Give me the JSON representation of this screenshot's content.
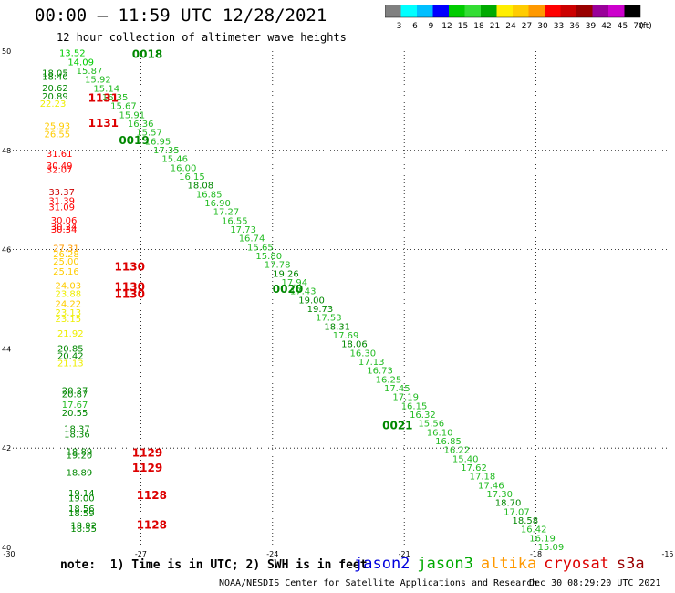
{
  "header": {
    "title": "00:00 – 11:59 UTC 12/28/2021",
    "subtitle": "12 hour collection of altimeter wave heights"
  },
  "colorbar": {
    "labels": [
      "3",
      "6",
      "9",
      "12",
      "15",
      "18",
      "21",
      "24",
      "27",
      "30",
      "33",
      "36",
      "39",
      "42",
      "45",
      "70",
      "(ft)"
    ],
    "colors": [
      "#808080",
      "#00ffff",
      "#00bfff",
      "#0000ff",
      "#00cc00",
      "#33dd33",
      "#00aa00",
      "#ffee00",
      "#ffcc00",
      "#ff9900",
      "#ff0000",
      "#cc0000",
      "#990000",
      "#990099",
      "#cc00cc",
      "#000000"
    ]
  },
  "footer": {
    "note": "note:  1) Time is in UTC; 2) SWH is in feet",
    "credit": "NOAA/NESDIS Center for Satellite Applications and Research",
    "timestamp": "Dec 30 08:29:20 UTC 2021"
  },
  "legend": [
    {
      "label": "jason2",
      "color": "#0000dd"
    },
    {
      "label": "jason3",
      "color": "#00aa00"
    },
    {
      "label": "altika",
      "color": "#ff9900"
    },
    {
      "label": "cryosat",
      "color": "#dd0000"
    },
    {
      "label": "s3a",
      "color": "#990000"
    }
  ],
  "chart_data": {
    "type": "scatter",
    "title": "12 hour collection of altimeter wave heights",
    "units": "ft",
    "xlim": [
      -30,
      -15
    ],
    "ylim": [
      40,
      50
    ],
    "x_ticks": [
      "-30",
      "-27",
      "-24",
      "-21",
      "-18",
      "-15"
    ],
    "y_ticks": [
      "40",
      "42",
      "44",
      "46",
      "48",
      "50"
    ],
    "grid": true,
    "series": [
      {
        "name": "jason3",
        "color": "#00aa00",
        "track": [
          [
            -28.9,
            49.95
          ],
          [
            -18.0,
            40.0
          ]
        ],
        "values": [
          "13.52",
          "14.09",
          "15.87",
          "15.92",
          "15.14",
          "16.35",
          "15.67",
          "15.91",
          "16.36",
          "15.57",
          "16.95",
          "17.35",
          "15.46",
          "16.00",
          "16.15",
          "18.08",
          "16.85",
          "16.90",
          "17.27",
          "16.55",
          "17.73",
          "16.74",
          "15.65",
          "15.80",
          "17.78",
          "19.26",
          "17.94",
          "17.43",
          "19.00",
          "19.73",
          "17.53",
          "18.31",
          "17.69",
          "18.06",
          "16.30",
          "17.13",
          "16.73",
          "16.25",
          "17.45",
          "17.19",
          "16.15",
          "16.32",
          "15.56",
          "16.10",
          "16.85",
          "16.22",
          "15.40",
          "17.62",
          "17.18",
          "17.46",
          "17.30",
          "18.70",
          "17.07",
          "18.58",
          "16.42",
          "16.19",
          "15.09"
        ],
        "time_labels": [
          {
            "text": "0018",
            "lat": 49.94,
            "lon": -27.2
          },
          {
            "text": "0019",
            "lat": 48.2,
            "lon": -27.5
          },
          {
            "text": "0020",
            "lat": 45.2,
            "lon": -24.0
          },
          {
            "text": "0021",
            "lat": 42.45,
            "lon": -21.5
          }
        ]
      },
      {
        "name": "cryosat",
        "color": "#dd0000",
        "points": [
          {
            "lat": 49.55,
            "lon": -29.25,
            "v": "18.05"
          },
          {
            "lat": 49.48,
            "lon": -29.25,
            "v": "18.40"
          },
          {
            "lat": 49.25,
            "lon": -29.25,
            "v": "20.62"
          },
          {
            "lat": 49.08,
            "lon": -29.25,
            "v": "20.89"
          },
          {
            "lat": 48.93,
            "lon": -29.3,
            "v": "22.23"
          },
          {
            "lat": 48.48,
            "lon": -29.2,
            "v": "25.93"
          },
          {
            "lat": 48.32,
            "lon": -29.2,
            "v": "26.55"
          },
          {
            "lat": 47.92,
            "lon": -29.15,
            "v": "31.61"
          },
          {
            "lat": 47.68,
            "lon": -29.15,
            "v": "30.49"
          },
          {
            "lat": 47.6,
            "lon": -29.15,
            "v": "32.07"
          },
          {
            "lat": 47.15,
            "lon": -29.1,
            "v": "33.37"
          },
          {
            "lat": 46.98,
            "lon": -29.1,
            "v": "31.39"
          },
          {
            "lat": 46.85,
            "lon": -29.1,
            "v": "31.09"
          },
          {
            "lat": 46.58,
            "lon": -29.05,
            "v": "30.06"
          },
          {
            "lat": 46.45,
            "lon": -29.05,
            "v": "30.24"
          },
          {
            "lat": 46.4,
            "lon": -29.05,
            "v": "30.34"
          },
          {
            "lat": 46.02,
            "lon": -29.0,
            "v": "27.31"
          },
          {
            "lat": 45.9,
            "lon": -29.0,
            "v": "26.28"
          },
          {
            "lat": 45.75,
            "lon": -29.0,
            "v": "25.00"
          },
          {
            "lat": 45.55,
            "lon": -29.0,
            "v": "25.16"
          },
          {
            "lat": 45.27,
            "lon": -28.95,
            "v": "24.03"
          },
          {
            "lat": 45.1,
            "lon": -28.95,
            "v": "23.88"
          },
          {
            "lat": 44.9,
            "lon": -28.95,
            "v": "24.22"
          },
          {
            "lat": 44.72,
            "lon": -28.95,
            "v": "23.13"
          },
          {
            "lat": 44.6,
            "lon": -28.95,
            "v": "23.15"
          },
          {
            "lat": 44.3,
            "lon": -28.9,
            "v": "21.92"
          },
          {
            "lat": 44.0,
            "lon": -28.9,
            "v": "20.85"
          },
          {
            "lat": 43.85,
            "lon": -28.9,
            "v": "20.42"
          },
          {
            "lat": 43.7,
            "lon": -28.9,
            "v": "21.13"
          },
          {
            "lat": 43.15,
            "lon": -28.8,
            "v": "20.27"
          },
          {
            "lat": 43.08,
            "lon": -28.8,
            "v": "20.87"
          },
          {
            "lat": 42.87,
            "lon": -28.8,
            "v": "17.67"
          },
          {
            "lat": 42.7,
            "lon": -28.8,
            "v": "20.55"
          },
          {
            "lat": 42.38,
            "lon": -28.75,
            "v": "18.37"
          },
          {
            "lat": 42.27,
            "lon": -28.75,
            "v": "18.36"
          },
          {
            "lat": 41.92,
            "lon": -28.7,
            "v": "18.89"
          },
          {
            "lat": 41.85,
            "lon": -28.7,
            "v": "19.20"
          },
          {
            "lat": 41.5,
            "lon": -28.7,
            "v": "18.89"
          },
          {
            "lat": 41.08,
            "lon": -28.65,
            "v": "19.14"
          },
          {
            "lat": 40.98,
            "lon": -28.65,
            "v": "19.00"
          },
          {
            "lat": 40.77,
            "lon": -28.65,
            "v": "18.56"
          },
          {
            "lat": 40.68,
            "lon": -28.65,
            "v": "18.59"
          },
          {
            "lat": 40.43,
            "lon": -28.6,
            "v": "18.92"
          },
          {
            "lat": 40.37,
            "lon": -28.6,
            "v": "18.55"
          }
        ],
        "time_labels": [
          {
            "text": "1131",
            "lat": 49.05,
            "lon": -28.2
          },
          {
            "text": "1131",
            "lat": 48.55,
            "lon": -28.2
          },
          {
            "text": "1130",
            "lat": 45.65,
            "lon": -27.6
          },
          {
            "text": "1130",
            "lat": 45.25,
            "lon": -27.6
          },
          {
            "text": "1130",
            "lat": 45.1,
            "lon": -27.6
          },
          {
            "text": "1129",
            "lat": 41.9,
            "lon": -27.2
          },
          {
            "text": "1129",
            "lat": 41.6,
            "lon": -27.2
          },
          {
            "text": "1128",
            "lat": 41.05,
            "lon": -27.1
          },
          {
            "text": "1128",
            "lat": 40.45,
            "lon": -27.1
          }
        ]
      }
    ]
  }
}
